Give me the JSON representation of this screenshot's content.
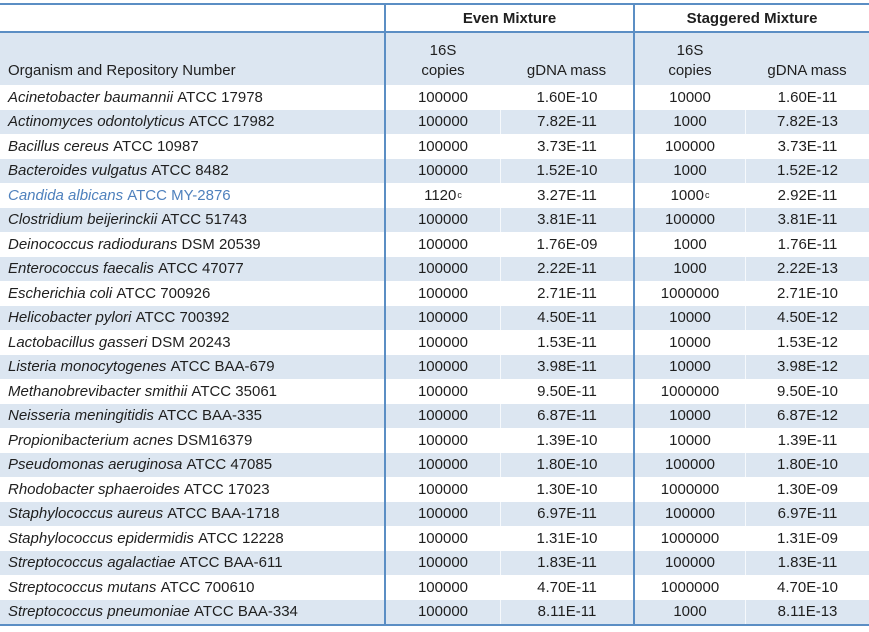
{
  "table": {
    "group_headers": {
      "even": "Even Mixture",
      "staggered": "Staggered Mixture"
    },
    "sub_headers": {
      "organism": "Organism and Repository Number",
      "copies_line1": "16S",
      "copies_line2": "copies",
      "gdna_mass": "gDNA mass"
    },
    "colors": {
      "stripe": "#dce6f1",
      "border_blue": "#5b8ec4",
      "highlight_text": "#4f81bd",
      "body_text": "#1f1f1f"
    },
    "rows": [
      {
        "species": "Acinetobacter baumannii",
        "strain": "ATCC 17978",
        "even_copies": "100000",
        "even_mass": "1.60E-10",
        "stag_copies": "10000",
        "stag_mass": "1.60E-11"
      },
      {
        "species": "Actinomyces odontolyticus",
        "strain": "ATCC 17982",
        "even_copies": "100000",
        "even_mass": "7.82E-11",
        "stag_copies": "1000",
        "stag_mass": "7.82E-13"
      },
      {
        "species": "Bacillus cereus",
        "strain": "ATCC 10987",
        "even_copies": "100000",
        "even_mass": "3.73E-11",
        "stag_copies": "100000",
        "stag_mass": "3.73E-11"
      },
      {
        "species": "Bacteroides vulgatus",
        "strain": "ATCC 8482",
        "even_copies": "100000",
        "even_mass": "1.52E-10",
        "stag_copies": "1000",
        "stag_mass": "1.52E-12"
      },
      {
        "species": "Candida albicans",
        "strain": "ATCC MY-2876",
        "even_copies": "1120",
        "even_copies_sup": "c",
        "even_mass": "3.27E-11",
        "stag_copies": "1000",
        "stag_copies_sup": "c",
        "stag_mass": "2.92E-11",
        "highlight": true
      },
      {
        "species": "Clostridium beijerinckii",
        "strain": "ATCC 51743",
        "even_copies": "100000",
        "even_mass": "3.81E-11",
        "stag_copies": "100000",
        "stag_mass": "3.81E-11"
      },
      {
        "species": "Deinococcus radiodurans",
        "strain": "DSM 20539",
        "even_copies": "100000",
        "even_mass": "1.76E-09",
        "stag_copies": "1000",
        "stag_mass": "1.76E-11"
      },
      {
        "species": "Enterococcus faecalis",
        "strain": "ATCC 47077",
        "even_copies": "100000",
        "even_mass": "2.22E-11",
        "stag_copies": "1000",
        "stag_mass": "2.22E-13"
      },
      {
        "species": "Escherichia coli",
        "strain": "ATCC 700926",
        "even_copies": "100000",
        "even_mass": "2.71E-11",
        "stag_copies": "1000000",
        "stag_mass": "2.71E-10"
      },
      {
        "species": "Helicobacter pylori",
        "strain": "ATCC 700392",
        "even_copies": "100000",
        "even_mass": "4.50E-11",
        "stag_copies": "10000",
        "stag_mass": "4.50E-12"
      },
      {
        "species": "Lactobacillus gasseri",
        "strain": "DSM 20243",
        "even_copies": "100000",
        "even_mass": "1.53E-11",
        "stag_copies": "10000",
        "stag_mass": "1.53E-12"
      },
      {
        "species": "Listeria monocytogenes",
        "strain": "ATCC BAA-679",
        "even_copies": "100000",
        "even_mass": "3.98E-11",
        "stag_copies": "10000",
        "stag_mass": "3.98E-12"
      },
      {
        "species": "Methanobrevibacter smithii",
        "strain": "ATCC 35061",
        "even_copies": "100000",
        "even_mass": "9.50E-11",
        "stag_copies": "1000000",
        "stag_mass": "9.50E-10"
      },
      {
        "species": "Neisseria meningitidis",
        "strain": "ATCC BAA-335",
        "even_copies": "100000",
        "even_mass": "6.87E-11",
        "stag_copies": "10000",
        "stag_mass": "6.87E-12"
      },
      {
        "species": "Propionibacterium acnes",
        "strain": "DSM16379",
        "even_copies": "100000",
        "even_mass": "1.39E-10",
        "stag_copies": "10000",
        "stag_mass": "1.39E-11"
      },
      {
        "species": "Pseudomonas aeruginosa",
        "strain": "ATCC 47085",
        "even_copies": "100000",
        "even_mass": "1.80E-10",
        "stag_copies": "100000",
        "stag_mass": "1.80E-10"
      },
      {
        "species": "Rhodobacter sphaeroides",
        "strain": "ATCC 17023",
        "even_copies": "100000",
        "even_mass": "1.30E-10",
        "stag_copies": "1000000",
        "stag_mass": "1.30E-09"
      },
      {
        "species": "Staphylococcus aureus",
        "strain": "ATCC BAA-1718",
        "even_copies": "100000",
        "even_mass": "6.97E-11",
        "stag_copies": "100000",
        "stag_mass": "6.97E-11"
      },
      {
        "species": "Staphylococcus epidermidis",
        "strain": "ATCC 12228",
        "even_copies": "100000",
        "even_mass": "1.31E-10",
        "stag_copies": "1000000",
        "stag_mass": "1.31E-09"
      },
      {
        "species": "Streptococcus agalactiae",
        "strain": "ATCC BAA-611",
        "even_copies": "100000",
        "even_mass": "1.83E-11",
        "stag_copies": "100000",
        "stag_mass": "1.83E-11"
      },
      {
        "species": "Streptococcus mutans",
        "strain": "ATCC 700610",
        "even_copies": "100000",
        "even_mass": "4.70E-11",
        "stag_copies": "1000000",
        "stag_mass": "4.70E-10"
      },
      {
        "species": "Streptococcus pneumoniae",
        "strain": "ATCC BAA-334",
        "even_copies": "100000",
        "even_mass": "8.11E-11",
        "stag_copies": "1000",
        "stag_mass": "8.11E-13"
      }
    ]
  }
}
